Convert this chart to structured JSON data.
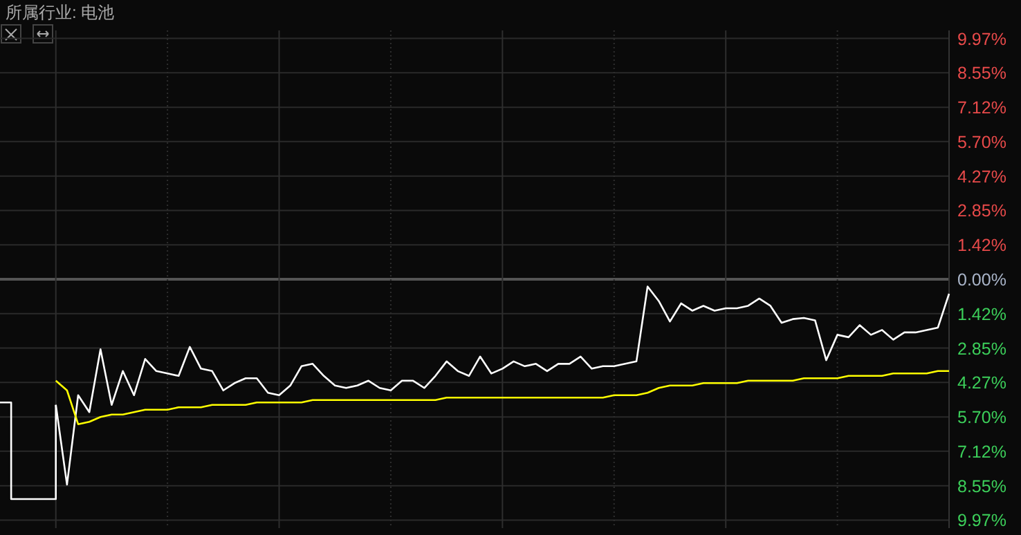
{
  "chart_data": {
    "type": "line",
    "title": "所属行业: 电池",
    "categories": [
      null,
      null,
      null,
      null,
      null,
      null,
      null,
      null,
      null,
      null,
      null,
      null,
      null,
      null,
      null,
      null,
      null,
      null,
      null,
      null,
      null,
      null,
      null,
      null,
      null,
      null,
      null,
      null,
      null,
      null,
      null,
      null,
      null,
      null,
      null,
      null,
      null,
      null,
      null,
      null,
      null,
      null,
      null,
      null,
      null,
      null,
      null,
      null,
      null,
      null,
      null,
      null,
      null,
      null,
      null,
      null,
      null,
      null,
      null,
      null,
      null,
      null,
      null,
      null,
      null,
      null,
      null,
      null,
      null,
      null,
      null,
      null,
      null,
      null,
      null,
      null,
      null,
      null,
      null,
      null,
      null,
      null,
      null,
      null,
      null,
      null
    ],
    "series": [
      {
        "type": "step",
        "color": "#ffffff",
        "values": [
          -5.1,
          -9.1,
          -9.1,
          -9.1,
          -9.1,
          -5.2,
          null,
          null,
          null,
          null,
          null,
          null,
          null,
          null,
          null,
          null,
          null,
          null,
          null,
          null,
          null,
          null,
          null,
          null,
          null,
          null,
          null,
          null,
          null,
          null,
          null,
          null,
          null,
          null,
          null,
          null,
          null,
          null,
          null,
          null,
          null,
          null,
          null,
          null,
          null,
          null,
          null,
          null,
          null,
          null,
          null,
          null,
          null,
          null,
          null,
          null,
          null,
          null,
          null,
          null,
          null,
          null,
          null,
          null,
          null,
          null,
          null,
          null,
          null,
          null,
          null,
          null,
          null,
          null,
          null,
          null,
          null,
          null,
          null,
          null,
          null,
          null,
          null,
          null,
          null,
          null
        ]
      },
      {
        "type": "line",
        "color": "#ffffff",
        "values": [
          null,
          null,
          null,
          null,
          null,
          -5.2,
          -8.5,
          -4.8,
          -5.5,
          -2.9,
          -5.2,
          -3.8,
          -4.8,
          -3.3,
          -3.8,
          -3.9,
          -4.0,
          -2.8,
          -3.7,
          -3.8,
          -4.6,
          -4.3,
          -4.1,
          -4.1,
          -4.7,
          -4.8,
          -4.4,
          -3.6,
          -3.5,
          -4.0,
          -4.4,
          -4.5,
          -4.4,
          -4.2,
          -4.5,
          -4.6,
          -4.2,
          -4.2,
          -4.5,
          -4.0,
          -3.4,
          -3.8,
          -4.0,
          -3.2,
          -3.9,
          -3.7,
          -3.4,
          -3.6,
          -3.5,
          -3.8,
          -3.5,
          -3.5,
          -3.2,
          -3.7,
          -3.6,
          -3.6,
          -3.5,
          -3.4,
          -0.3,
          -0.9,
          -1.75,
          -1.0,
          -1.3,
          -1.1,
          -1.3,
          -1.2,
          -1.2,
          -1.1,
          -0.8,
          -1.1,
          -1.8,
          -1.65,
          -1.6,
          -1.7,
          -3.35,
          -2.3,
          -2.4,
          -1.9,
          -2.3,
          -2.1,
          -2.5,
          -2.2,
          -2.2,
          -2.1,
          -2.0,
          -0.6
        ]
      },
      {
        "type": "line",
        "color": "#ffff00",
        "values": [
          null,
          null,
          null,
          null,
          null,
          -4.2,
          -4.6,
          -6.0,
          -5.9,
          -5.7,
          -5.6,
          -5.6,
          -5.5,
          -5.4,
          -5.4,
          -5.4,
          -5.3,
          -5.3,
          -5.3,
          -5.2,
          -5.2,
          -5.2,
          -5.2,
          -5.1,
          -5.1,
          -5.1,
          -5.1,
          -5.1,
          -5.0,
          -5.0,
          -5.0,
          -5.0,
          -5.0,
          -5.0,
          -5.0,
          -5.0,
          -5.0,
          -5.0,
          -5.0,
          -5.0,
          -4.9,
          -4.9,
          -4.9,
          -4.9,
          -4.9,
          -4.9,
          -4.9,
          -4.9,
          -4.9,
          -4.9,
          -4.9,
          -4.9,
          -4.9,
          -4.9,
          -4.9,
          -4.8,
          -4.8,
          -4.8,
          -4.7,
          -4.5,
          -4.4,
          -4.4,
          -4.4,
          -4.3,
          -4.3,
          -4.3,
          -4.3,
          -4.2,
          -4.2,
          -4.2,
          -4.2,
          -4.2,
          -4.1,
          -4.1,
          -4.1,
          -4.1,
          -4.0,
          -4.0,
          -4.0,
          -4.0,
          -3.9,
          -3.9,
          -3.9,
          -3.9,
          -3.8,
          -3.8
        ]
      }
    ],
    "ylim": [
      -10.3,
      10.3
    ],
    "yticks": [
      {
        "value": 9.97,
        "label": "9.97%"
      },
      {
        "value": 8.55,
        "label": "8.55%"
      },
      {
        "value": 7.12,
        "label": "7.12%"
      },
      {
        "value": 5.7,
        "label": "5.70%"
      },
      {
        "value": 4.27,
        "label": "4.27%"
      },
      {
        "value": 2.85,
        "label": "2.85%"
      },
      {
        "value": 1.42,
        "label": "1.42%"
      },
      {
        "value": 0,
        "label": "0.00%"
      },
      {
        "value": -1.42,
        "label": "1.42%"
      },
      {
        "value": -2.85,
        "label": "2.85%"
      },
      {
        "value": -4.27,
        "label": "4.27%"
      },
      {
        "value": -5.7,
        "label": "5.70%"
      },
      {
        "value": -7.12,
        "label": "7.12%"
      },
      {
        "value": -8.55,
        "label": "8.55%"
      },
      {
        "value": -9.97,
        "label": "9.97%"
      }
    ],
    "grid": true,
    "marker": "none",
    "line_style": "solid"
  }
}
